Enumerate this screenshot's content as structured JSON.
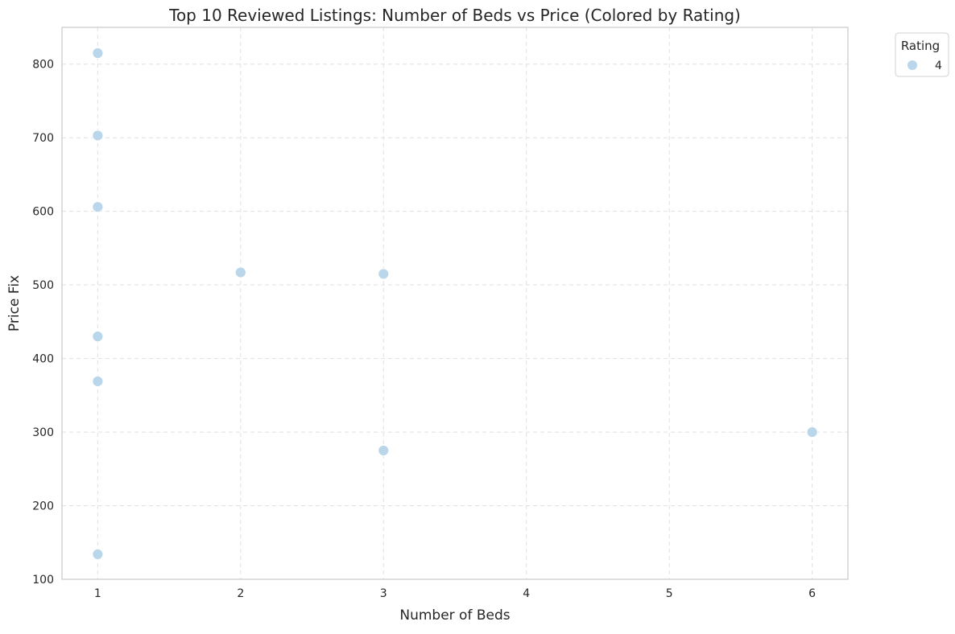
{
  "chart_data": {
    "type": "scatter",
    "title": "Top 10 Reviewed Listings: Number of Beds vs Price (Colored by Rating)",
    "xlabel": "Number of Beds",
    "ylabel": "Price Fix",
    "xlim": [
      0.75,
      6.25
    ],
    "ylim": [
      100,
      850
    ],
    "x_ticks": [
      1,
      2,
      3,
      4,
      5,
      6
    ],
    "y_ticks": [
      100,
      200,
      300,
      400,
      500,
      600,
      700,
      800
    ],
    "grid": true,
    "legend": {
      "title": "Rating",
      "placement": "outside-top-right",
      "entries": [
        {
          "label": "4",
          "color": "#b9d6ea"
        }
      ]
    },
    "series": [
      {
        "name": "4",
        "color": "#b9d6ea",
        "points": [
          {
            "x": 1,
            "y": 815
          },
          {
            "x": 1,
            "y": 703
          },
          {
            "x": 1,
            "y": 606
          },
          {
            "x": 1,
            "y": 430
          },
          {
            "x": 1,
            "y": 369
          },
          {
            "x": 1,
            "y": 134
          },
          {
            "x": 2,
            "y": 517
          },
          {
            "x": 3,
            "y": 515
          },
          {
            "x": 3,
            "y": 275
          },
          {
            "x": 6,
            "y": 300
          }
        ]
      }
    ]
  }
}
